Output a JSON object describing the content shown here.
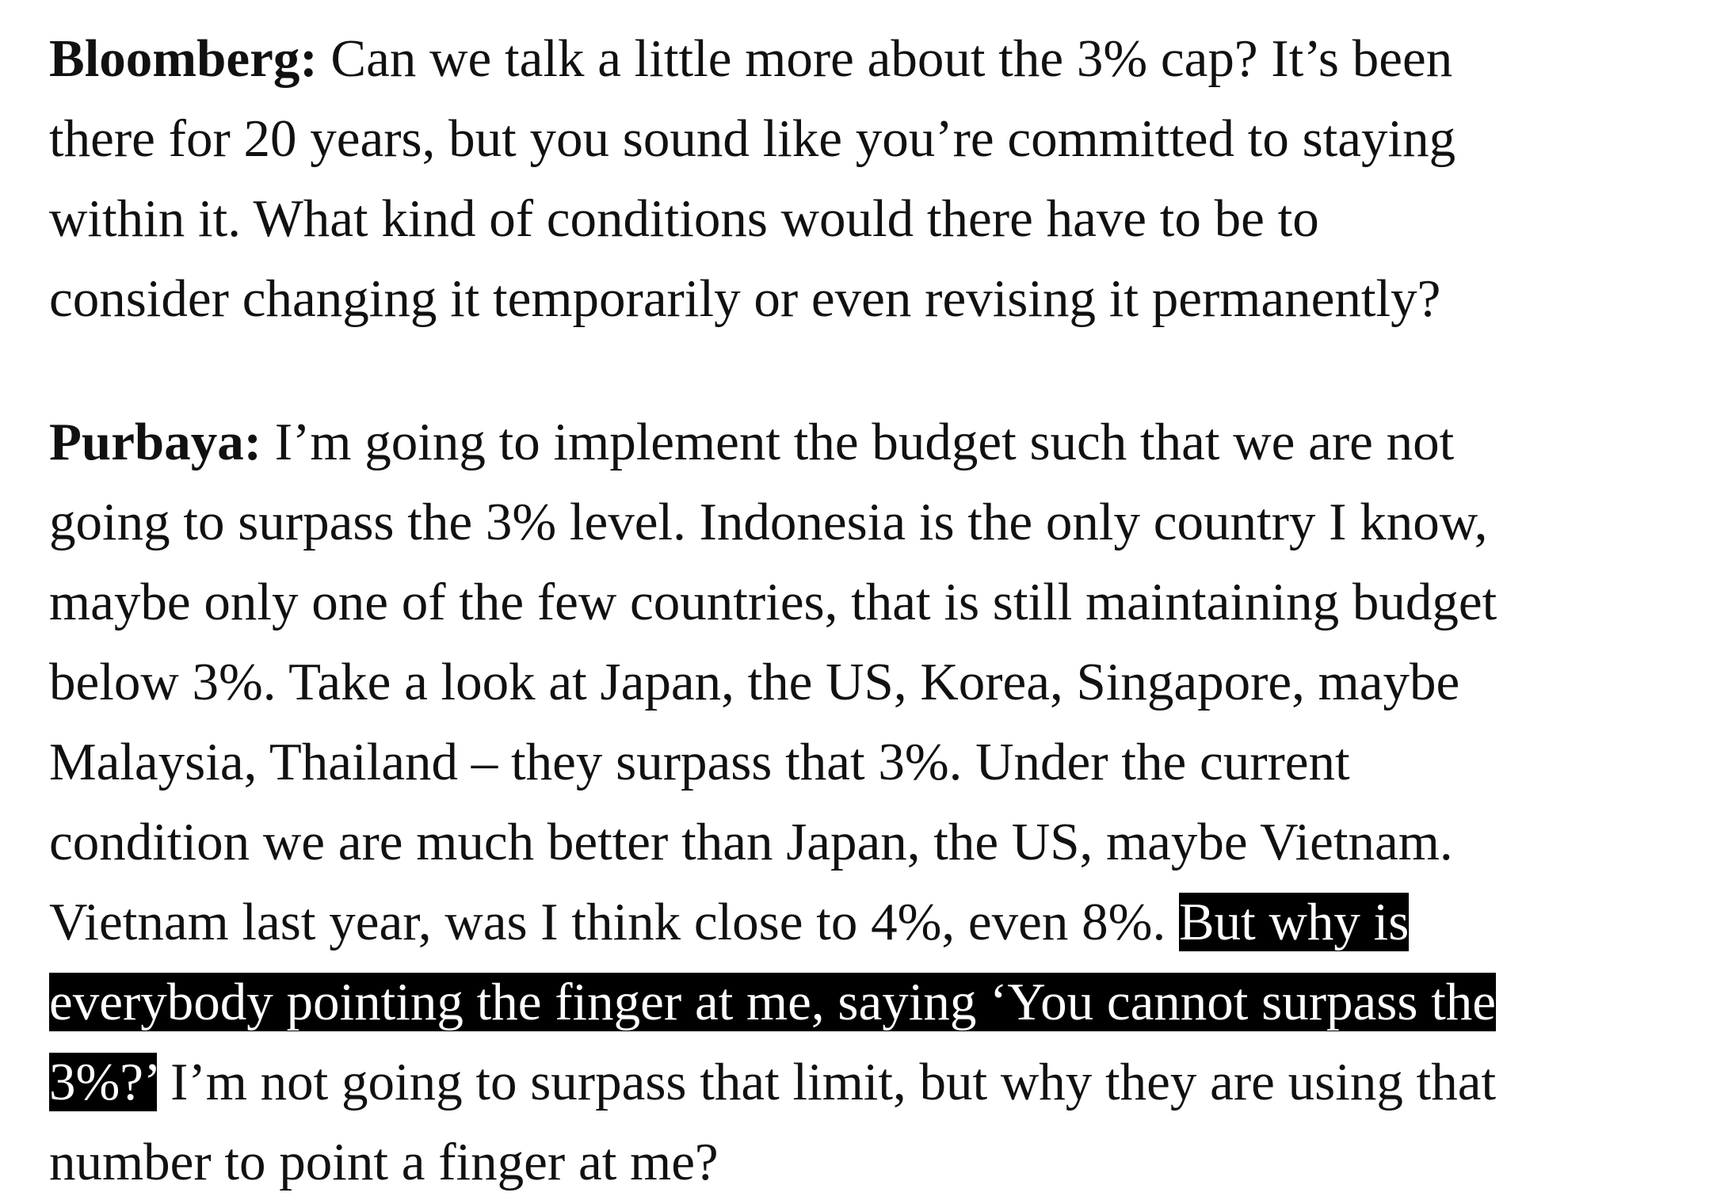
{
  "interview": {
    "question": {
      "speaker": "Bloomberg:",
      "text": " Can we talk a little more about the 3% cap? It’s been\nthere for 20 years, but you sound like you’re committed to staying\nwithin it. What kind of conditions would there have to be to\nconsider changing it temporarily or even revising it permanently?"
    },
    "answer": {
      "speaker": "Purbaya:",
      "text_before": " I’m going to implement the budget such that we are not\ngoing to surpass the 3% level. Indonesia is the only country I know,\nmaybe only one of the few countries, that is still maintaining budget\nbelow 3%. Take a look at Japan, the US, Korea, Singapore, maybe\nMalaysia, Thailand – they surpass that 3%. Under the current\ncondition we are much better than Japan, the US, maybe Vietnam.\nVietnam last year, was I think close to 4%, even 8%. ",
      "text_highlighted": "But why is\neverybody pointing the finger at me, saying ‘You cannot surpass the\n3%?’",
      "text_after": " I’m not going to surpass that limit, but why they are using that\nnumber to point a finger at me?"
    }
  },
  "colors": {
    "text": "#111111",
    "background": "#ffffff",
    "selection_background": "#000000",
    "selection_text": "#ffffff"
  }
}
